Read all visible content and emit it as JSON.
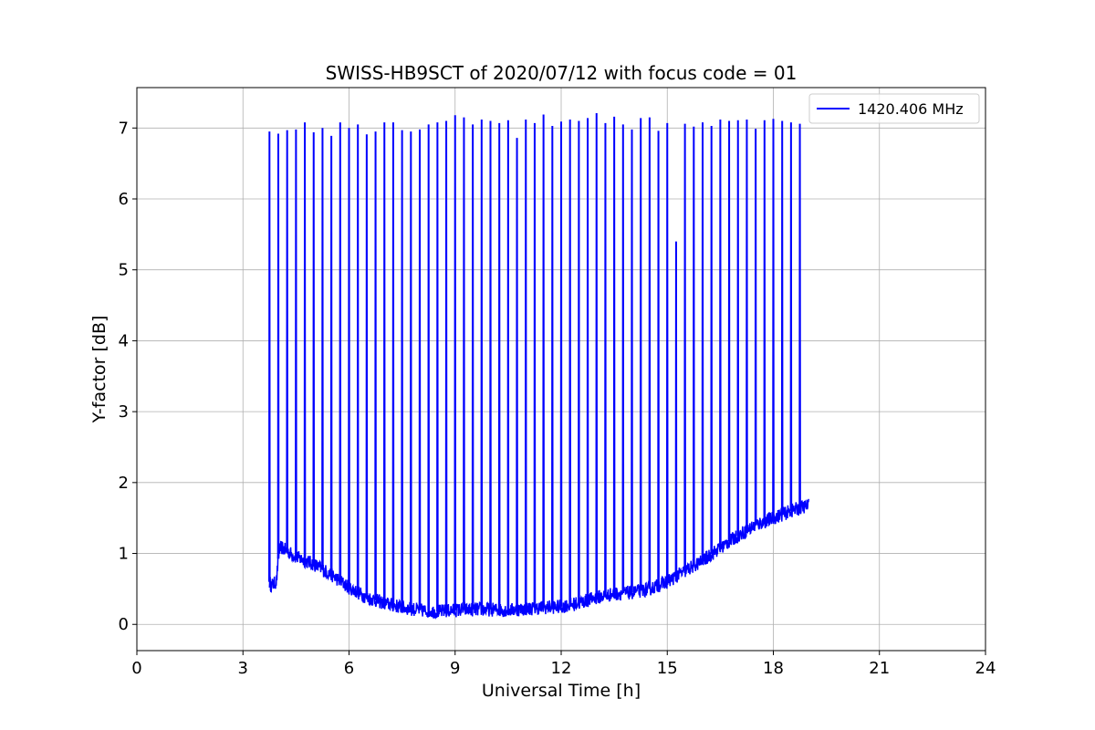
{
  "chart_data": {
    "type": "line",
    "title": "SWISS-HB9SCT of 2020/07/12 with focus code = 01",
    "xlabel": "Universal Time [h]",
    "ylabel": "Y-factor [dB]",
    "xlim": [
      0,
      24
    ],
    "ylim": [
      -0.37,
      7.57
    ],
    "xticks": [
      0,
      3,
      6,
      9,
      12,
      15,
      18,
      21,
      24
    ],
    "yticks": [
      0,
      1,
      2,
      3,
      4,
      5,
      6,
      7
    ],
    "grid": true,
    "legend_position": "top-right",
    "series": [
      {
        "name": "1420.406 MHz",
        "color": "#0000ff",
        "baseline": {
          "x": [
            3.75,
            3.8,
            3.9,
            3.95,
            4.02,
            4.1,
            4.5,
            5.0,
            5.5,
            6.0,
            6.5,
            7.0,
            7.5,
            8.0,
            8.5,
            9.0,
            9.5,
            10.0,
            10.5,
            11.0,
            11.5,
            12.0,
            12.5,
            13.0,
            13.5,
            14.0,
            14.5,
            15.0,
            15.5,
            16.0,
            16.5,
            17.0,
            17.5,
            18.0,
            18.5,
            19.0
          ],
          "y": [
            0.6,
            0.55,
            0.58,
            0.62,
            1.05,
            1.08,
            0.95,
            0.85,
            0.7,
            0.52,
            0.38,
            0.3,
            0.24,
            0.2,
            0.18,
            0.2,
            0.21,
            0.21,
            0.2,
            0.22,
            0.24,
            0.25,
            0.3,
            0.38,
            0.43,
            0.45,
            0.5,
            0.6,
            0.75,
            0.9,
            1.08,
            1.25,
            1.4,
            1.5,
            1.6,
            1.68
          ]
        },
        "spikes": {
          "x": [
            3.75,
            4.0,
            4.25,
            4.5,
            4.75,
            5.0,
            5.25,
            5.5,
            5.75,
            6.0,
            6.25,
            6.5,
            6.75,
            7.0,
            7.25,
            7.5,
            7.75,
            8.0,
            8.25,
            8.5,
            8.75,
            9.0,
            9.25,
            9.5,
            9.75,
            10.0,
            10.25,
            10.5,
            10.75,
            11.0,
            11.25,
            11.5,
            11.75,
            12.0,
            12.25,
            12.5,
            12.75,
            13.0,
            13.25,
            13.5,
            13.75,
            14.0,
            14.25,
            14.5,
            14.75,
            15.0,
            15.25,
            15.5,
            15.75,
            16.0,
            16.25,
            16.5,
            16.75,
            17.0,
            17.25,
            17.5,
            17.75,
            18.0,
            18.25,
            18.5,
            18.75
          ],
          "y": [
            6.95,
            6.92,
            6.97,
            6.98,
            7.08,
            6.94,
            7.0,
            6.89,
            7.08,
            7.0,
            7.05,
            6.91,
            6.95,
            7.08,
            7.08,
            6.97,
            6.95,
            6.98,
            7.05,
            7.08,
            7.1,
            7.18,
            7.15,
            7.05,
            7.12,
            7.1,
            7.07,
            7.11,
            6.86,
            7.12,
            7.07,
            7.19,
            7.03,
            7.09,
            7.12,
            7.1,
            7.14,
            7.21,
            7.07,
            7.16,
            7.05,
            6.98,
            7.14,
            7.15,
            6.96,
            7.07,
            5.4,
            7.06,
            7.02,
            7.08,
            7.03,
            7.12,
            7.1,
            7.11,
            7.12,
            6.99,
            7.11,
            7.13,
            7.1,
            7.08,
            7.06
          ]
        }
      }
    ]
  }
}
